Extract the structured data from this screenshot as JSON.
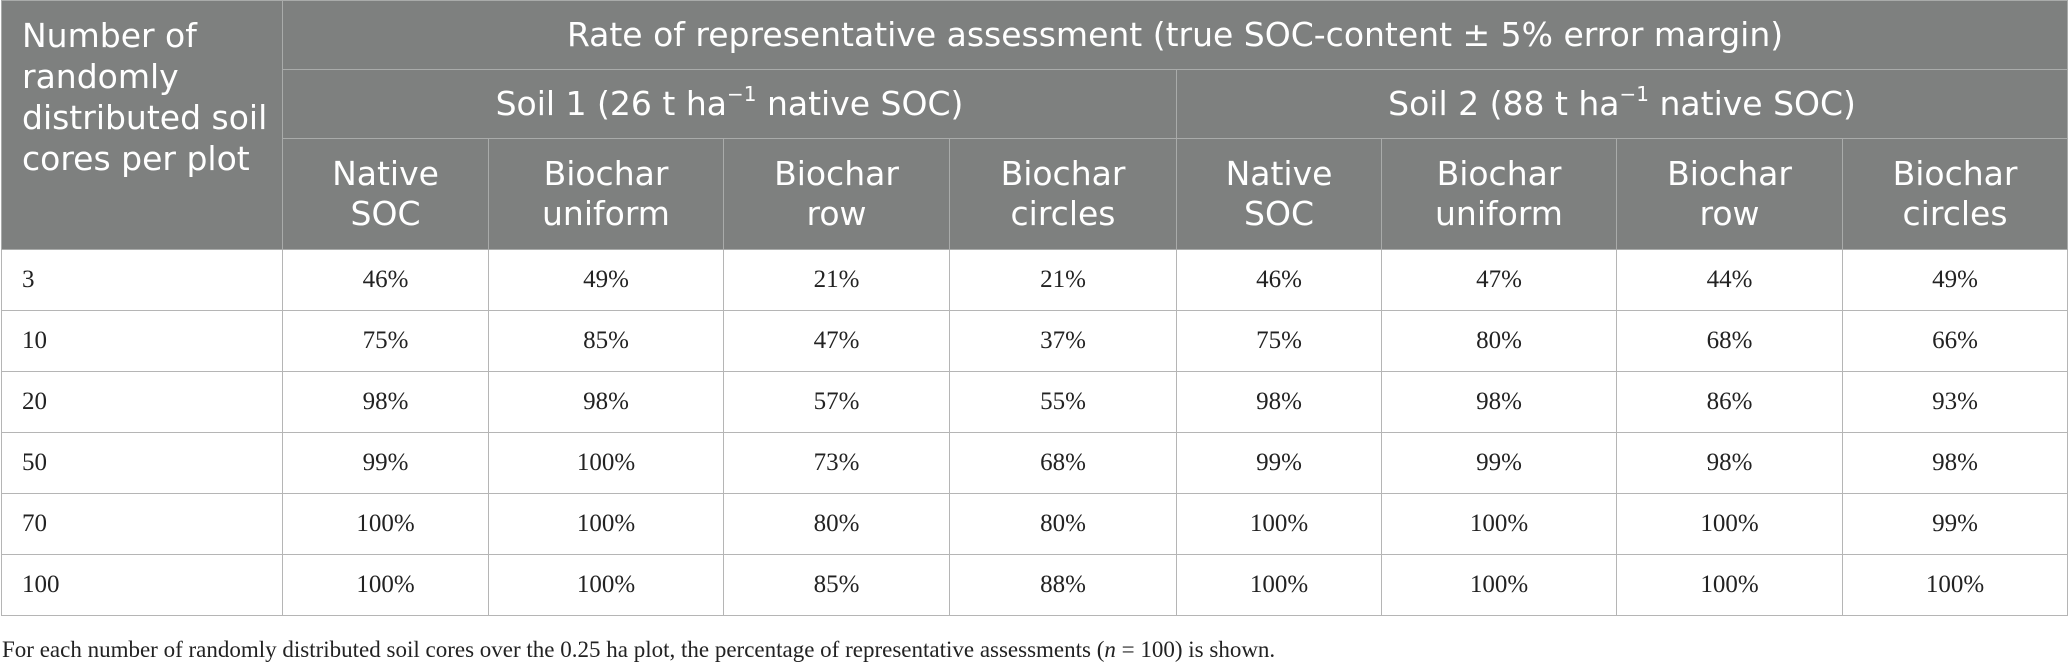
{
  "header": {
    "corner_label": "Number of randomly distributed soil cores per plot",
    "super_header": "Rate of representative assessment (true SOC-content ± 5% error margin)",
    "soils": [
      {
        "label_prefix": "Soil 1 (26 t ha",
        "sup": "−1",
        "label_suffix": " native SOC)"
      },
      {
        "label_prefix": "Soil 2 (88 t ha",
        "sup": "−1",
        "label_suffix": " native SOC)"
      }
    ],
    "columns": [
      [
        "Native",
        "SOC"
      ],
      [
        "Biochar",
        "uniform"
      ],
      [
        "Biochar",
        "row"
      ],
      [
        "Biochar",
        "circles"
      ],
      [
        "Native",
        "SOC"
      ],
      [
        "Biochar",
        "uniform"
      ],
      [
        "Biochar",
        "row"
      ],
      [
        "Biochar",
        "circles"
      ]
    ]
  },
  "rows": [
    {
      "cores": "3",
      "values": [
        "46%",
        "49%",
        "21%",
        "21%",
        "46%",
        "47%",
        "44%",
        "49%"
      ]
    },
    {
      "cores": "10",
      "values": [
        "75%",
        "85%",
        "47%",
        "37%",
        "75%",
        "80%",
        "68%",
        "66%"
      ]
    },
    {
      "cores": "20",
      "values": [
        "98%",
        "98%",
        "57%",
        "55%",
        "98%",
        "98%",
        "86%",
        "93%"
      ]
    },
    {
      "cores": "50",
      "values": [
        "99%",
        "100%",
        "73%",
        "68%",
        "99%",
        "99%",
        "98%",
        "98%"
      ]
    },
    {
      "cores": "70",
      "values": [
        "100%",
        "100%",
        "80%",
        "80%",
        "100%",
        "100%",
        "100%",
        "99%"
      ]
    },
    {
      "cores": "100",
      "values": [
        "100%",
        "100%",
        "85%",
        "88%",
        "100%",
        "100%",
        "100%",
        "100%"
      ]
    }
  ],
  "footnote": {
    "before_n": "For each number of randomly distributed soil cores over the 0.25 ha plot, the percentage of representative assessments (",
    "n_symbol": "n",
    "after_n": " = 100) is shown."
  },
  "colors": {
    "header_bg": "#7e807f",
    "header_text": "#ffffff",
    "grid": "#b5b5b5"
  }
}
